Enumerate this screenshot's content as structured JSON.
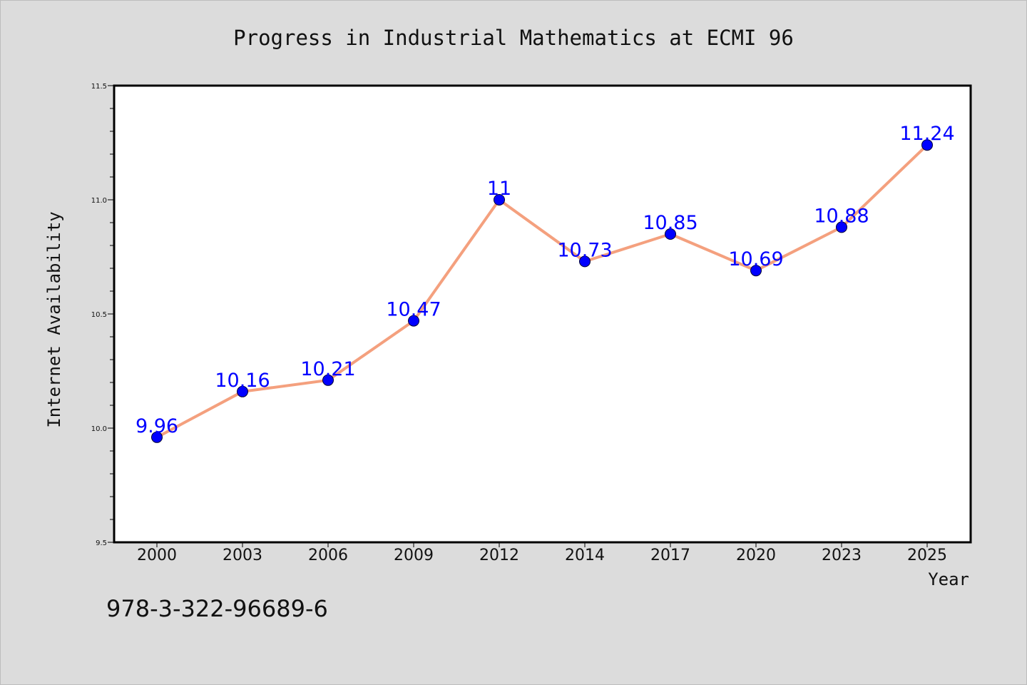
{
  "chart_data": {
    "type": "line",
    "title": "Progress in Industrial Mathematics at ECMI 96",
    "xlabel": "Year",
    "ylabel": "Internet Availability",
    "categories": [
      "2000",
      "2003",
      "2006",
      "2009",
      "2012",
      "2014",
      "2017",
      "2020",
      "2023",
      "2025"
    ],
    "values": [
      9.96,
      10.16,
      10.21,
      10.47,
      11,
      10.73,
      10.85,
      10.69,
      10.88,
      11.24
    ],
    "data_labels": [
      "9.96",
      "10.16",
      "10.21",
      "10.47",
      "11",
      "10.73",
      "10.85",
      "10.69",
      "10.88",
      "11.24"
    ],
    "ylim": [
      9.5,
      11.5
    ],
    "yticks": [
      9.5,
      10.0,
      10.5,
      11.0,
      11.5
    ],
    "ytick_labels": [
      "9.5",
      "10.0",
      "10.5",
      "11.0",
      "11.5"
    ],
    "grid": false,
    "colors": {
      "line": "#f4a07e",
      "marker": "#0000ff",
      "data_label": "#0000ff",
      "background": "#dcdcdc",
      "plot_background": "#ffffff"
    }
  },
  "footnote": "978-3-322-96689-6"
}
